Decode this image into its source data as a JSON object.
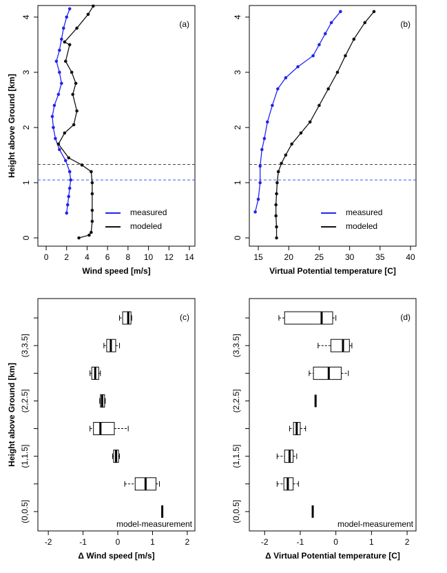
{
  "chart_data": [
    {
      "type": "line",
      "annotation": "(a)",
      "xlabel": "Wind speed [m/s]",
      "ylabel": "Height above Ground [km]",
      "xlim": [
        -0.81,
        14.54
      ],
      "ylim": [
        -0.15,
        4.21
      ],
      "xticks": [
        0,
        2,
        4,
        6,
        8,
        10,
        12,
        14
      ],
      "yticks": [
        0,
        1,
        2,
        3,
        4
      ],
      "legend": "lower right",
      "reference_lines": [
        {
          "value": 1.33,
          "color": "#444444"
        },
        {
          "value": 1.05,
          "color": "#3355ff"
        }
      ],
      "series": [
        {
          "name": "measured",
          "color": "#2222ee",
          "x": [
            2.0,
            2.1,
            2.2,
            2.3,
            2.4,
            2.3,
            1.9,
            1.3,
            0.9,
            0.7,
            0.6,
            0.8,
            1.2,
            1.5,
            1.3,
            1.0,
            1.3,
            1.5,
            1.7,
            2.0,
            2.3
          ],
          "values": [
            0.45,
            0.6,
            0.75,
            0.9,
            1.05,
            1.2,
            1.4,
            1.6,
            1.8,
            2.0,
            2.2,
            2.4,
            2.6,
            2.8,
            3.0,
            3.2,
            3.4,
            3.6,
            3.8,
            4.0,
            4.15
          ]
        },
        {
          "name": "modeled",
          "color": "#111111",
          "x": [
            3.2,
            4.2,
            4.4,
            4.5,
            4.5,
            4.5,
            4.5,
            4.4,
            3.5,
            2.2,
            1.2,
            1.8,
            2.7,
            3.0,
            2.6,
            2.9,
            2.5,
            1.9,
            2.3,
            1.8,
            3.0,
            4.1,
            4.6
          ],
          "values": [
            0.0,
            0.05,
            0.1,
            0.3,
            0.5,
            0.8,
            1.0,
            1.2,
            1.32,
            1.45,
            1.7,
            1.9,
            2.05,
            2.3,
            2.6,
            2.8,
            3.0,
            3.2,
            3.5,
            3.55,
            3.8,
            4.05,
            4.2
          ]
        }
      ]
    },
    {
      "type": "line",
      "annotation": "(b)",
      "xlabel": "Virtual Potential temperature [C]",
      "xlim": [
        13.53,
        40.9
      ],
      "ylim": [
        -0.15,
        4.21
      ],
      "xticks": [
        15,
        20,
        25,
        30,
        35,
        40
      ],
      "yticks": [
        0,
        1,
        2,
        3,
        4
      ],
      "legend": "lower right",
      "reference_lines": [
        {
          "value": 1.33,
          "color": "#444444"
        },
        {
          "value": 1.05,
          "color": "#3355ff"
        }
      ],
      "series": [
        {
          "name": "measured",
          "color": "#2222ee",
          "x": [
            14.5,
            15.0,
            15.3,
            15.3,
            15.6,
            16.0,
            16.5,
            17.3,
            18.2,
            19.5,
            21.5,
            24.0,
            25.0,
            26.0,
            27.0,
            28.5
          ],
          "values": [
            0.47,
            0.7,
            1.0,
            1.3,
            1.6,
            1.8,
            2.1,
            2.4,
            2.7,
            2.9,
            3.1,
            3.3,
            3.5,
            3.7,
            3.9,
            4.1
          ]
        },
        {
          "name": "modeled",
          "color": "#111111",
          "x": [
            18.0,
            18.0,
            17.9,
            17.9,
            18.0,
            18.1,
            18.3,
            18.8,
            19.5,
            20.5,
            22.0,
            23.5,
            25.0,
            26.5,
            28.0,
            29.3,
            30.7,
            32.5,
            34.0
          ],
          "values": [
            0.0,
            0.2,
            0.4,
            0.6,
            0.8,
            1.0,
            1.2,
            1.35,
            1.5,
            1.7,
            1.9,
            2.1,
            2.4,
            2.7,
            3.0,
            3.3,
            3.6,
            3.9,
            4.1
          ]
        }
      ]
    },
    {
      "type": "box",
      "annotation": "(c)",
      "note": "model-measurement",
      "xlabel": "Δ Wind speed [m/s]",
      "ylabel": "Height above Ground [km]",
      "xlim": [
        -2.3,
        2.22
      ],
      "xticks": [
        -2,
        -1,
        0,
        1,
        2
      ],
      "categories": [
        "(0,0.5]",
        null,
        "(1,1.5]",
        null,
        "(2,2.5]",
        null,
        "(3,3.5]",
        null
      ],
      "boxes": [
        {
          "median": 1.28
        },
        {
          "whisker_low": 0.2,
          "q1": 0.5,
          "median": 0.8,
          "q3": 1.1,
          "whisker_high": 1.2
        },
        {
          "whisker_low": -0.15,
          "q1": -0.12,
          "median": -0.05,
          "q3": 0.02,
          "whisker_high": 0.05
        },
        {
          "whisker_low": -0.8,
          "q1": -0.7,
          "median": -0.5,
          "q3": -0.1,
          "whisker_high": 0.3
        },
        {
          "whisker_low": -0.52,
          "q1": -0.5,
          "median": -0.45,
          "q3": -0.38,
          "whisker_high": -0.36
        },
        {
          "whisker_low": -0.8,
          "q1": -0.75,
          "median": -0.65,
          "q3": -0.55,
          "whisker_high": -0.5
        },
        {
          "whisker_low": -0.4,
          "q1": -0.32,
          "median": -0.2,
          "q3": -0.06,
          "whisker_high": 0.05
        },
        {
          "whisker_low": 0.05,
          "q1": 0.14,
          "median": 0.3,
          "q3": 0.38,
          "whisker_high": 0.4
        }
      ]
    },
    {
      "type": "box",
      "annotation": "(d)",
      "note": "model-measurement",
      "xlabel": "Δ Virtual Potential temperature [C]",
      "xlim": [
        -2.43,
        2.25
      ],
      "xticks": [
        -2,
        -1,
        0,
        1,
        2
      ],
      "categories": [
        "(0,0.5]",
        null,
        "(1,1.5]",
        null,
        "(2,2.5]",
        null,
        "(3,3.5]",
        null
      ],
      "boxes": [
        {
          "median": -0.65
        },
        {
          "whisker_low": -1.65,
          "q1": -1.46,
          "median": -1.35,
          "q3": -1.2,
          "whisker_high": -1.05
        },
        {
          "whisker_low": -1.65,
          "q1": -1.44,
          "median": -1.3,
          "q3": -1.2,
          "whisker_high": -1.1
        },
        {
          "whisker_low": -1.3,
          "q1": -1.19,
          "median": -1.1,
          "q3": -1.0,
          "whisker_high": -0.85
        },
        {
          "median": -0.57
        },
        {
          "whisker_low": -0.75,
          "q1": -0.63,
          "median": -0.2,
          "q3": 0.15,
          "whisker_high": 0.35
        },
        {
          "whisker_low": -0.5,
          "q1": -0.14,
          "median": 0.2,
          "q3": 0.38,
          "whisker_high": 0.45
        },
        {
          "whisker_low": -1.6,
          "q1": -1.44,
          "median": -0.4,
          "q3": -0.09,
          "whisker_high": 0.0
        }
      ]
    }
  ]
}
